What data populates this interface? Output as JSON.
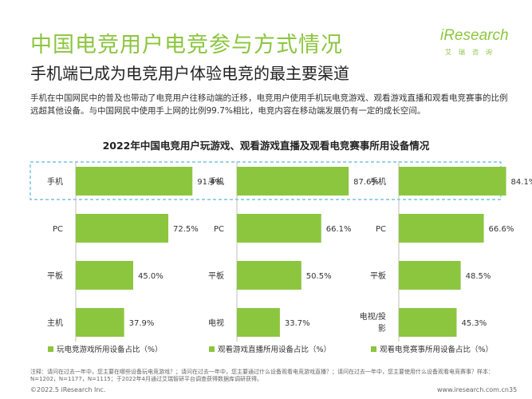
{
  "header": {
    "title": "中国电竞用户电竞参与方式情况",
    "subtitle": "手机端已成为电竞用户体验电竞的最主要渠道",
    "description": "手机在中国网民中的普及也带动了电竞用户往移动端的迁移，电竞用户使用手机玩电竞游戏、观看游戏直播和观看电竞赛事的比例远超其他设备。与中国网民中使用手上网的比例99.7%相比，电竞内容在移动端发展仍有一定的成长空间。"
  },
  "logo": {
    "main": "iResearch",
    "sub": "艾瑞咨询"
  },
  "colors": {
    "accent": "#8cc63f",
    "bar": "#8cc63f",
    "highlight_border": "#5bb8d8"
  },
  "chart_data": {
    "type": "bar",
    "orientation": "horizontal",
    "title": "2022年中国电竞用户玩游戏、观看游戏直播及观看电竞赛事所用设备情况",
    "xlim": [
      0,
      100
    ],
    "panels": [
      {
        "name": "玩电竞游戏所用设备占比（%）",
        "categories": [
          "手机",
          "PC",
          "平板",
          "主机"
        ],
        "values": [
          91.4,
          72.5,
          45.0,
          37.9
        ],
        "labels": [
          "91.4%",
          "72.5%",
          "45.0%",
          "37.9%"
        ]
      },
      {
        "name": "观看游戏直播所用设备占比（%）",
        "categories": [
          "手机",
          "PC",
          "平板",
          "电视"
        ],
        "values": [
          87.6,
          66.1,
          50.5,
          33.7
        ],
        "labels": [
          "87.6%",
          "66.1%",
          "50.5%",
          "33.7%"
        ]
      },
      {
        "name": "观看电竞赛事所用设备占比（%）",
        "categories": [
          "手机",
          "PC",
          "平板",
          "电视/投影"
        ],
        "values": [
          84.1,
          66.6,
          48.5,
          45.3
        ],
        "labels": [
          "84.1%",
          "66.6%",
          "48.5%",
          "45.3%"
        ]
      }
    ]
  },
  "footer": {
    "note": "注释：请问在过去一年中，您主要在哪些设备玩电竞游戏？；请问在过去一年中，您主要通过什么设备观看电竞游戏直播？；请问在过去一年中，您主要使用什么设备观看电竞赛事？样本：N=1202，N=1177，N=1115；于2022年4月通过艾瑞智研平台调查获得数据库调研获得。",
    "copyright": "©2022.5 iResearch Inc.",
    "website": "www.iresearch.com.cn",
    "page": "35"
  }
}
